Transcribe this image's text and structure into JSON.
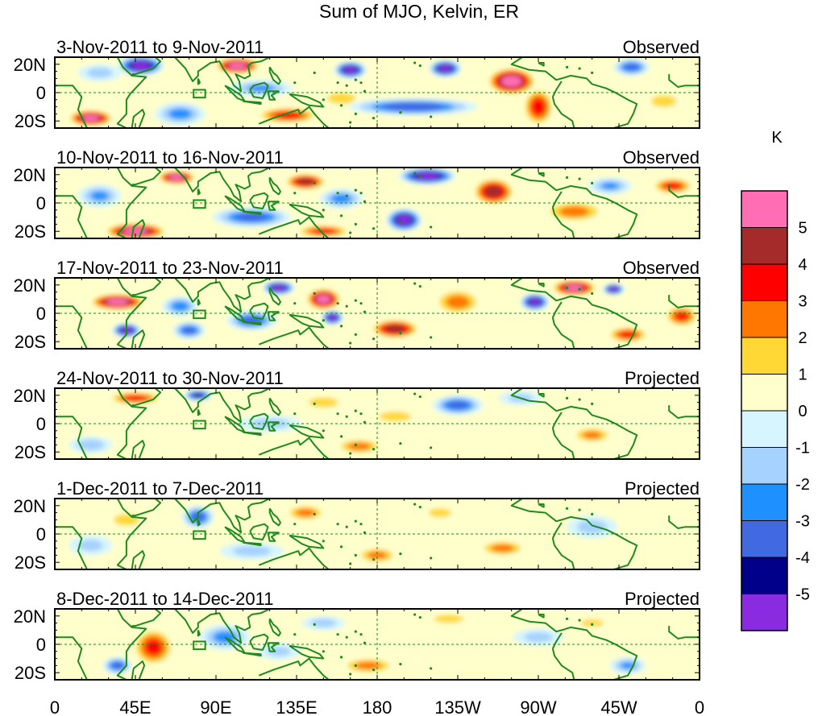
{
  "chart_data": {
    "type": "heatmap",
    "title": "Sum of MJO, Kelvin, ER",
    "x_ticks": [
      "0",
      "45E",
      "90E",
      "135E",
      "180",
      "135W",
      "90W",
      "45W",
      "0"
    ],
    "y_ticks": [
      "20N",
      "0",
      "20S"
    ],
    "x_range_deg_east": [
      0,
      360
    ],
    "y_range_deg_lat": [
      -25,
      25
    ],
    "colorbar": {
      "unit": "K",
      "labels": [
        "5",
        "4",
        "3",
        "2",
        "1",
        "0",
        "-1",
        "-2",
        "-3",
        "-4",
        "-5"
      ],
      "colors": [
        "#ff6eb4",
        "#a52a2a",
        "#ff0000",
        "#ff7700",
        "#ffd835",
        "#ffffcc",
        "#d6f5ff",
        "#a6d2ff",
        "#1e90ff",
        "#4169e1",
        "#00008b",
        "#8a2be2"
      ]
    },
    "panels": [
      {
        "period": "3-Nov-2011 to 9-Nov-2011",
        "status": "Observed",
        "features": [
          {
            "lon": 48,
            "lat": 19,
            "value": -5.3,
            "rx": 13,
            "ry": 7
          },
          {
            "lon": 102,
            "lat": 19,
            "value": 5.3,
            "rx": 13,
            "ry": 6
          },
          {
            "lon": 20,
            "lat": -18,
            "value": 5.2,
            "rx": 13,
            "ry": 6
          },
          {
            "lon": 165,
            "lat": 16,
            "value": -5.2,
            "rx": 9,
            "ry": 6
          },
          {
            "lon": 218,
            "lat": 17,
            "value": -5.2,
            "rx": 9,
            "ry": 6
          },
          {
            "lon": 255,
            "lat": 8,
            "value": 5.4,
            "rx": 14,
            "ry": 10
          },
          {
            "lon": 270,
            "lat": -10,
            "value": 3.4,
            "rx": 9,
            "ry": 14
          },
          {
            "lon": 322,
            "lat": 18,
            "value": -3.2,
            "rx": 10,
            "ry": 6
          },
          {
            "lon": 200,
            "lat": -10,
            "value": -3.6,
            "rx": 36,
            "ry": 6
          },
          {
            "lon": 130,
            "lat": -16,
            "value": 3.4,
            "rx": 18,
            "ry": 6
          },
          {
            "lon": 70,
            "lat": -15,
            "value": -2.4,
            "rx": 14,
            "ry": 8
          },
          {
            "lon": 115,
            "lat": 3,
            "value": -2.2,
            "rx": 18,
            "ry": 6
          },
          {
            "lon": 25,
            "lat": 14,
            "value": -1.6,
            "rx": 12,
            "ry": 6
          },
          {
            "lon": 340,
            "lat": -6,
            "value": 1.6,
            "rx": 12,
            "ry": 7
          },
          {
            "lon": 160,
            "lat": -4,
            "value": 1.5,
            "rx": 14,
            "ry": 7
          }
        ]
      },
      {
        "period": "10-Nov-2011 to 16-Nov-2011",
        "status": "Observed",
        "features": [
          {
            "lon": 68,
            "lat": 18,
            "value": 5.3,
            "rx": 11,
            "ry": 5
          },
          {
            "lon": 140,
            "lat": 15,
            "value": 4.4,
            "rx": 12,
            "ry": 6
          },
          {
            "lon": 208,
            "lat": 19,
            "value": -5.3,
            "rx": 16,
            "ry": 6
          },
          {
            "lon": 195,
            "lat": -12,
            "value": -5.3,
            "rx": 10,
            "ry": 8
          },
          {
            "lon": 245,
            "lat": 8,
            "value": 4.4,
            "rx": 12,
            "ry": 10
          },
          {
            "lon": 45,
            "lat": -20,
            "value": 5.3,
            "rx": 18,
            "ry": 6
          },
          {
            "lon": 110,
            "lat": -10,
            "value": -3.2,
            "rx": 22,
            "ry": 7
          },
          {
            "lon": 290,
            "lat": -6,
            "value": 2.4,
            "rx": 18,
            "ry": 8
          },
          {
            "lon": 345,
            "lat": 12,
            "value": 3.3,
            "rx": 12,
            "ry": 6
          },
          {
            "lon": 25,
            "lat": 5,
            "value": -2.2,
            "rx": 12,
            "ry": 8
          },
          {
            "lon": 160,
            "lat": 3,
            "value": -2.5,
            "rx": 12,
            "ry": 7
          },
          {
            "lon": 310,
            "lat": 12,
            "value": -2.2,
            "rx": 12,
            "ry": 6
          },
          {
            "lon": 150,
            "lat": -20,
            "value": 3.2,
            "rx": 16,
            "ry": 5
          }
        ]
      },
      {
        "period": "17-Nov-2011 to 23-Nov-2011",
        "status": "Observed",
        "features": [
          {
            "lon": 35,
            "lat": 8,
            "value": 5.3,
            "rx": 16,
            "ry": 6
          },
          {
            "lon": 150,
            "lat": 10,
            "value": 5.3,
            "rx": 10,
            "ry": 8
          },
          {
            "lon": 190,
            "lat": -11,
            "value": 4.4,
            "rx": 14,
            "ry": 7
          },
          {
            "lon": 290,
            "lat": 18,
            "value": 5.2,
            "rx": 13,
            "ry": 6
          },
          {
            "lon": 268,
            "lat": 8,
            "value": -5.2,
            "rx": 8,
            "ry": 6
          },
          {
            "lon": 312,
            "lat": 17,
            "value": -5.2,
            "rx": 6,
            "ry": 4
          },
          {
            "lon": 40,
            "lat": -12,
            "value": -5.2,
            "rx": 8,
            "ry": 5
          },
          {
            "lon": 75,
            "lat": -12,
            "value": -3.2,
            "rx": 9,
            "ry": 6
          },
          {
            "lon": 125,
            "lat": 18,
            "value": -5.2,
            "rx": 9,
            "ry": 5
          },
          {
            "lon": 155,
            "lat": -3,
            "value": -5.3,
            "rx": 6,
            "ry": 5
          },
          {
            "lon": 110,
            "lat": -5,
            "value": -3.2,
            "rx": 14,
            "ry": 7
          },
          {
            "lon": 225,
            "lat": 8,
            "value": 2.4,
            "rx": 14,
            "ry": 10
          },
          {
            "lon": 320,
            "lat": -15,
            "value": 3.2,
            "rx": 12,
            "ry": 6
          },
          {
            "lon": 70,
            "lat": 5,
            "value": -2.6,
            "rx": 10,
            "ry": 7
          },
          {
            "lon": 350,
            "lat": -2,
            "value": 3.1,
            "rx": 10,
            "ry": 8
          }
        ]
      },
      {
        "period": "24-Nov-2011 to 30-Nov-2011",
        "status": "Projected",
        "features": [
          {
            "lon": 45,
            "lat": 18,
            "value": 3.2,
            "rx": 16,
            "ry": 5
          },
          {
            "lon": 80,
            "lat": 20,
            "value": -4.2,
            "rx": 8,
            "ry": 4
          },
          {
            "lon": 225,
            "lat": 13,
            "value": -3.2,
            "rx": 14,
            "ry": 7
          },
          {
            "lon": 150,
            "lat": 15,
            "value": 1.6,
            "rx": 14,
            "ry": 6
          },
          {
            "lon": 170,
            "lat": -16,
            "value": 2.4,
            "rx": 14,
            "ry": 6
          },
          {
            "lon": 300,
            "lat": -8,
            "value": 2.3,
            "rx": 12,
            "ry": 6
          },
          {
            "lon": 20,
            "lat": -15,
            "value": -1.8,
            "rx": 12,
            "ry": 6
          },
          {
            "lon": 120,
            "lat": 0,
            "value": -1.6,
            "rx": 18,
            "ry": 6
          },
          {
            "lon": 260,
            "lat": 18,
            "value": -1.5,
            "rx": 12,
            "ry": 5
          },
          {
            "lon": 190,
            "lat": 5,
            "value": 1.3,
            "rx": 18,
            "ry": 7
          }
        ]
      },
      {
        "period": "1-Dec-2011 to 7-Dec-2011",
        "status": "Projected",
        "features": [
          {
            "lon": 80,
            "lat": 12,
            "value": -3.2,
            "rx": 9,
            "ry": 8
          },
          {
            "lon": 140,
            "lat": 15,
            "value": 2.4,
            "rx": 12,
            "ry": 6
          },
          {
            "lon": 180,
            "lat": -15,
            "value": 2.4,
            "rx": 12,
            "ry": 6
          },
          {
            "lon": 250,
            "lat": -10,
            "value": 2.4,
            "rx": 14,
            "ry": 6
          },
          {
            "lon": 300,
            "lat": 5,
            "value": -1.6,
            "rx": 14,
            "ry": 8
          },
          {
            "lon": 40,
            "lat": 10,
            "value": 1.6,
            "rx": 12,
            "ry": 7
          },
          {
            "lon": 110,
            "lat": -12,
            "value": -1.6,
            "rx": 18,
            "ry": 6
          },
          {
            "lon": 215,
            "lat": 15,
            "value": 1.4,
            "rx": 12,
            "ry": 6
          },
          {
            "lon": 20,
            "lat": -8,
            "value": -1.5,
            "rx": 12,
            "ry": 7
          }
        ]
      },
      {
        "period": "8-Dec-2011 to 14-Dec-2011",
        "status": "Projected",
        "features": [
          {
            "lon": 55,
            "lat": -2,
            "value": 3.2,
            "rx": 12,
            "ry": 14
          },
          {
            "lon": 35,
            "lat": -15,
            "value": -3.2,
            "rx": 8,
            "ry": 6
          },
          {
            "lon": 95,
            "lat": 5,
            "value": -2.4,
            "rx": 14,
            "ry": 9
          },
          {
            "lon": 175,
            "lat": -15,
            "value": 2.4,
            "rx": 16,
            "ry": 6
          },
          {
            "lon": 220,
            "lat": 18,
            "value": 1.6,
            "rx": 14,
            "ry": 5
          },
          {
            "lon": 150,
            "lat": 15,
            "value": -1.6,
            "rx": 12,
            "ry": 5
          },
          {
            "lon": 320,
            "lat": -15,
            "value": -2.2,
            "rx": 10,
            "ry": 6
          },
          {
            "lon": 270,
            "lat": 5,
            "value": -1.5,
            "rx": 14,
            "ry": 6
          },
          {
            "lon": 300,
            "lat": 15,
            "value": 1.4,
            "rx": 12,
            "ry": 5
          },
          {
            "lon": 125,
            "lat": -5,
            "value": -1.4,
            "rx": 12,
            "ry": 6
          }
        ]
      }
    ]
  }
}
